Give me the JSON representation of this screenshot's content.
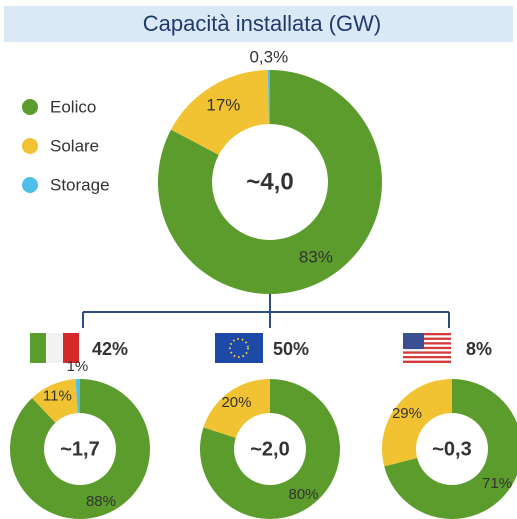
{
  "title": "Capacità installata (GW)",
  "chart_data": [
    {
      "type": "pie",
      "center_label": "~4,0",
      "categories": [
        "Eolico",
        "Solare",
        "Storage"
      ],
      "values": [
        83,
        17,
        0.3
      ],
      "value_labels": [
        "83%",
        "17%",
        "0,3%"
      ],
      "colors": [
        "#5b9c2c",
        "#f1c232",
        "#4dbfe8"
      ]
    },
    {
      "type": "pie",
      "subtitle": "42%",
      "center_label": "~1,7",
      "values": [
        88,
        11,
        1
      ],
      "value_labels": [
        "88%",
        "11%",
        "1%"
      ],
      "colors": [
        "#5b9c2c",
        "#f1c232",
        "#4dbfe8"
      ]
    },
    {
      "type": "pie",
      "subtitle": "50%",
      "center_label": "~2,0",
      "values": [
        80,
        20
      ],
      "value_labels": [
        "80%",
        "20%"
      ],
      "colors": [
        "#5b9c2c",
        "#f1c232"
      ]
    },
    {
      "type": "pie",
      "subtitle": "8%",
      "center_label": "~0,3",
      "values": [
        71,
        29
      ],
      "value_labels": [
        "71%",
        "29%"
      ],
      "colors": [
        "#5b9c2c",
        "#f1c232"
      ]
    }
  ]
}
